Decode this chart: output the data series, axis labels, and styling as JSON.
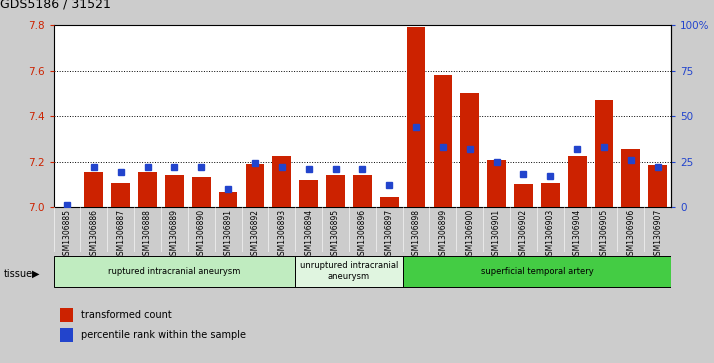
{
  "title": "GDS5186 / 31521",
  "samples": [
    "GSM1306885",
    "GSM1306886",
    "GSM1306887",
    "GSM1306888",
    "GSM1306889",
    "GSM1306890",
    "GSM1306891",
    "GSM1306892",
    "GSM1306893",
    "GSM1306894",
    "GSM1306895",
    "GSM1306896",
    "GSM1306897",
    "GSM1306898",
    "GSM1306899",
    "GSM1306900",
    "GSM1306901",
    "GSM1306902",
    "GSM1306903",
    "GSM1306904",
    "GSM1306905",
    "GSM1306906",
    "GSM1306907"
  ],
  "red_values": [
    7.0,
    7.155,
    7.105,
    7.155,
    7.14,
    7.13,
    7.065,
    7.19,
    7.225,
    7.12,
    7.14,
    7.14,
    7.045,
    7.795,
    7.58,
    7.5,
    7.205,
    7.1,
    7.105,
    7.225,
    7.47,
    7.255,
    7.185
  ],
  "blue_values": [
    1,
    22,
    19,
    22,
    22,
    22,
    10,
    24,
    22,
    21,
    21,
    21,
    12,
    44,
    33,
    32,
    25,
    18,
    17,
    32,
    33,
    26,
    22
  ],
  "ylim_left": [
    7.0,
    7.8
  ],
  "ylim_right": [
    0,
    100
  ],
  "yticks_left": [
    7.0,
    7.2,
    7.4,
    7.6,
    7.8
  ],
  "yticks_right": [
    0,
    25,
    50,
    75,
    100
  ],
  "ytick_labels_right": [
    "0",
    "25",
    "50",
    "75",
    "100%"
  ],
  "groups": [
    {
      "label": "ruptured intracranial aneurysm",
      "start": 0,
      "end": 9,
      "color": "#c0ecc0"
    },
    {
      "label": "unruptured intracranial\naneurysm",
      "start": 9,
      "end": 13,
      "color": "#e0f5e0"
    },
    {
      "label": "superficial temporal artery",
      "start": 13,
      "end": 23,
      "color": "#44cc44"
    }
  ],
  "tissue_label": "tissue",
  "legend_red": "transformed count",
  "legend_blue": "percentile rank within the sample",
  "bar_color": "#cc2200",
  "blue_color": "#2244cc",
  "bg_color": "#cccccc",
  "plot_bg": "#ffffff",
  "xtick_bg": "#cccccc",
  "grid_color": "#000000",
  "left_axis_color": "#cc2200",
  "right_axis_color": "#2244cc"
}
